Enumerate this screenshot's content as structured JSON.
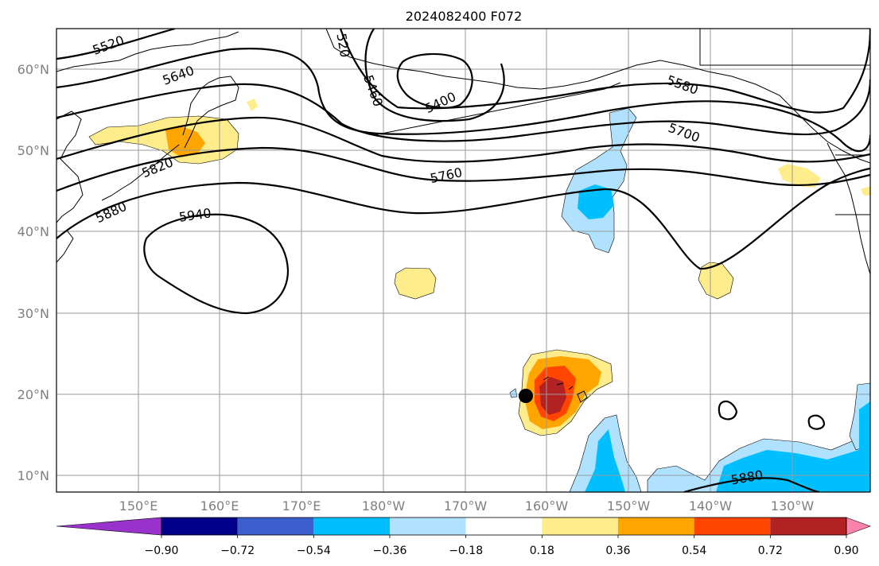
{
  "title": "2024082400 F072",
  "map": {
    "lat_labels": [
      "60°N",
      "50°N",
      "40°N",
      "30°N",
      "20°N",
      "10°N"
    ],
    "lon_labels": [
      "150°E",
      "160°E",
      "170°E",
      "180°W",
      "170°W",
      "160°W",
      "150°W",
      "140°W",
      "130°W"
    ],
    "height_contour_labels": [
      "5520",
      "5640",
      "5820",
      "5880",
      "5940",
      "520",
      "5460",
      "5400",
      "5760",
      "5580",
      "5700",
      "5880"
    ],
    "colors": {
      "neg_090": "#9932cc",
      "neg_072": "#00008b",
      "neg_054": "#3a5fcd",
      "neg_036": "#00bfff",
      "neg_018": "#b0e2ff",
      "zero": "#ffffff",
      "pos_018": "#ffec8b",
      "pos_036": "#ffa500",
      "pos_054": "#ff4500",
      "pos_072": "#b22222",
      "pos_090": "#ff82ab"
    }
  },
  "colorbar": {
    "colors": [
      "#9932cc",
      "#00008b",
      "#3a5fcd",
      "#00bfff",
      "#b0e2ff",
      "#ffffff",
      "#ffec8b",
      "#ffa500",
      "#ff4500",
      "#b22222",
      "#ff82ab"
    ],
    "tick_labels": [
      "−0.90",
      "−0.72",
      "−0.54",
      "−0.36",
      "−0.18",
      "0.18",
      "0.36",
      "0.54",
      "0.72",
      "0.90"
    ]
  }
}
